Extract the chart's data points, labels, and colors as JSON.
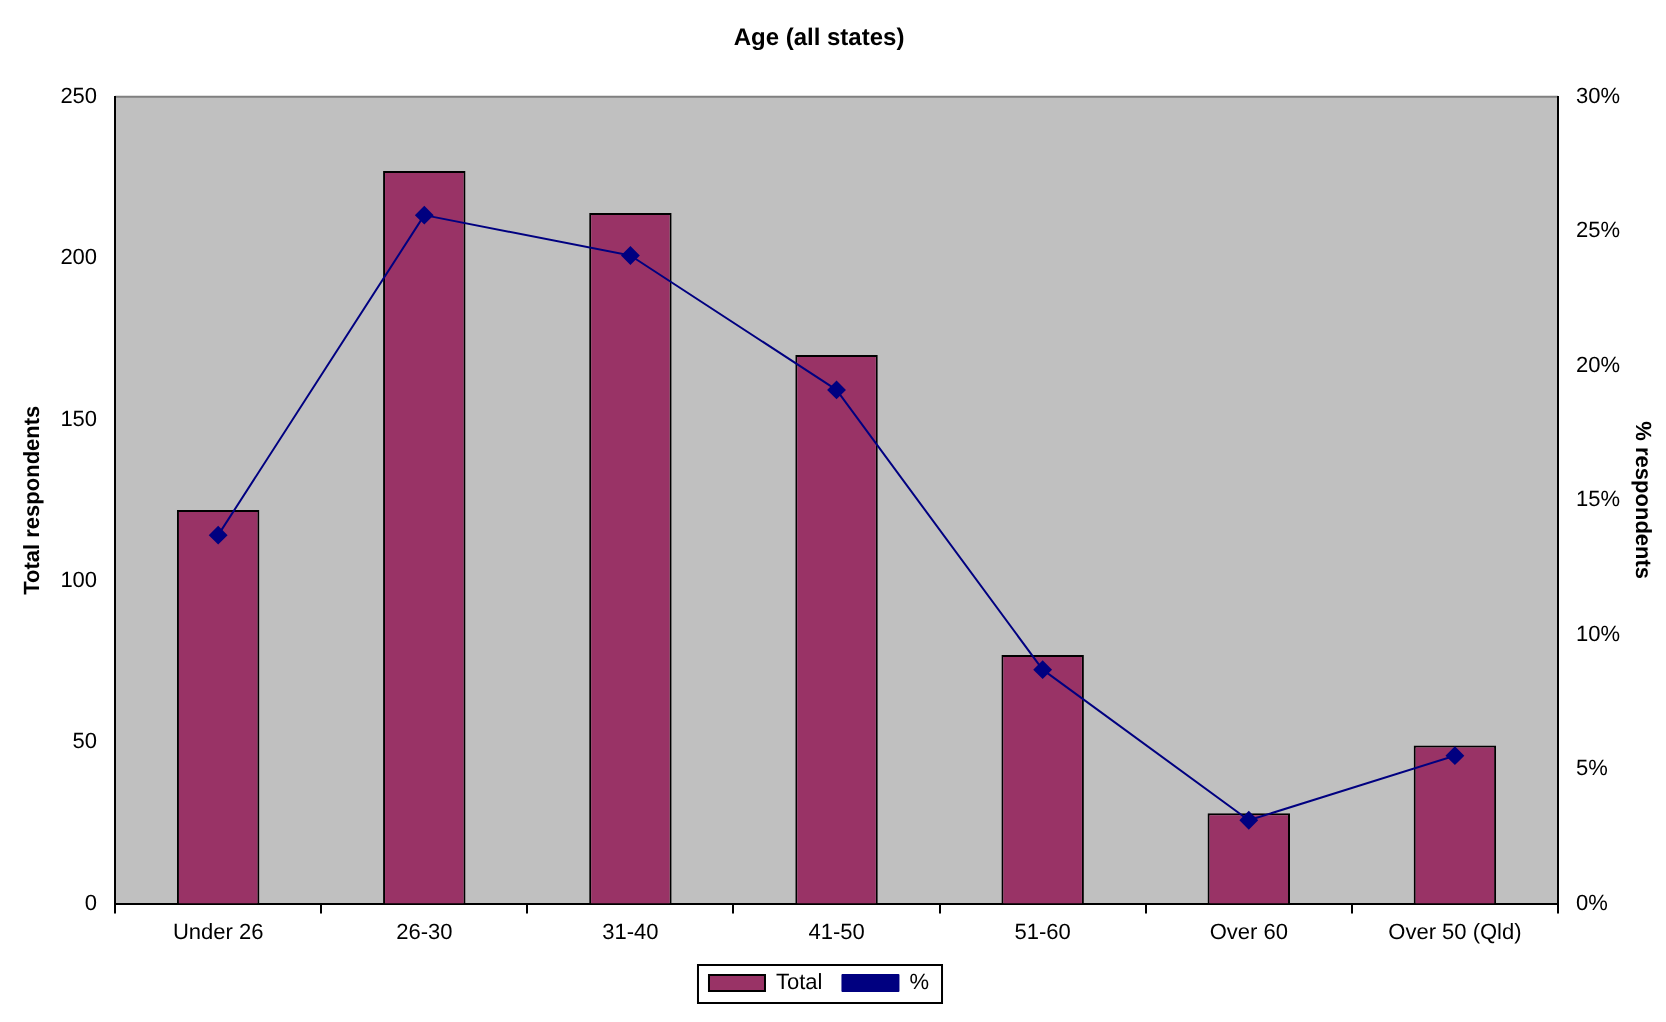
{
  "chart_data": {
    "type": "bar",
    "title": "Age (all states)",
    "ylabel": "Total respondents",
    "y2label": "% respondents",
    "categories": [
      "Under 26",
      "26-30",
      "31-40",
      "41-50",
      "51-60",
      "Over 60",
      "Over 50 (Qld)"
    ],
    "series": [
      {
        "name": "Total",
        "color": "#993366",
        "values": [
          122,
          227,
          214,
          170,
          77,
          28,
          49
        ]
      },
      {
        "name": "%",
        "type": "line",
        "axis": "y2",
        "color": "#000080",
        "marker": "diamond",
        "values": [
          13.7,
          25.6,
          24.1,
          19.1,
          8.7,
          3.1,
          5.5
        ]
      }
    ],
    "ylim": [
      0,
      250
    ],
    "yticks": [
      0,
      50,
      100,
      150,
      200,
      250
    ],
    "y2lim": [
      0,
      30
    ],
    "y2ticks": [
      {
        "value": 0,
        "label": "0%"
      },
      {
        "value": 5,
        "label": "5%"
      },
      {
        "value": 10,
        "label": "10%"
      },
      {
        "value": 15,
        "label": "15%"
      },
      {
        "value": 20,
        "label": "20%"
      },
      {
        "value": 25,
        "label": "25%"
      },
      {
        "value": 30,
        "label": "30%"
      }
    ],
    "grid": false,
    "legend": "bottom"
  }
}
